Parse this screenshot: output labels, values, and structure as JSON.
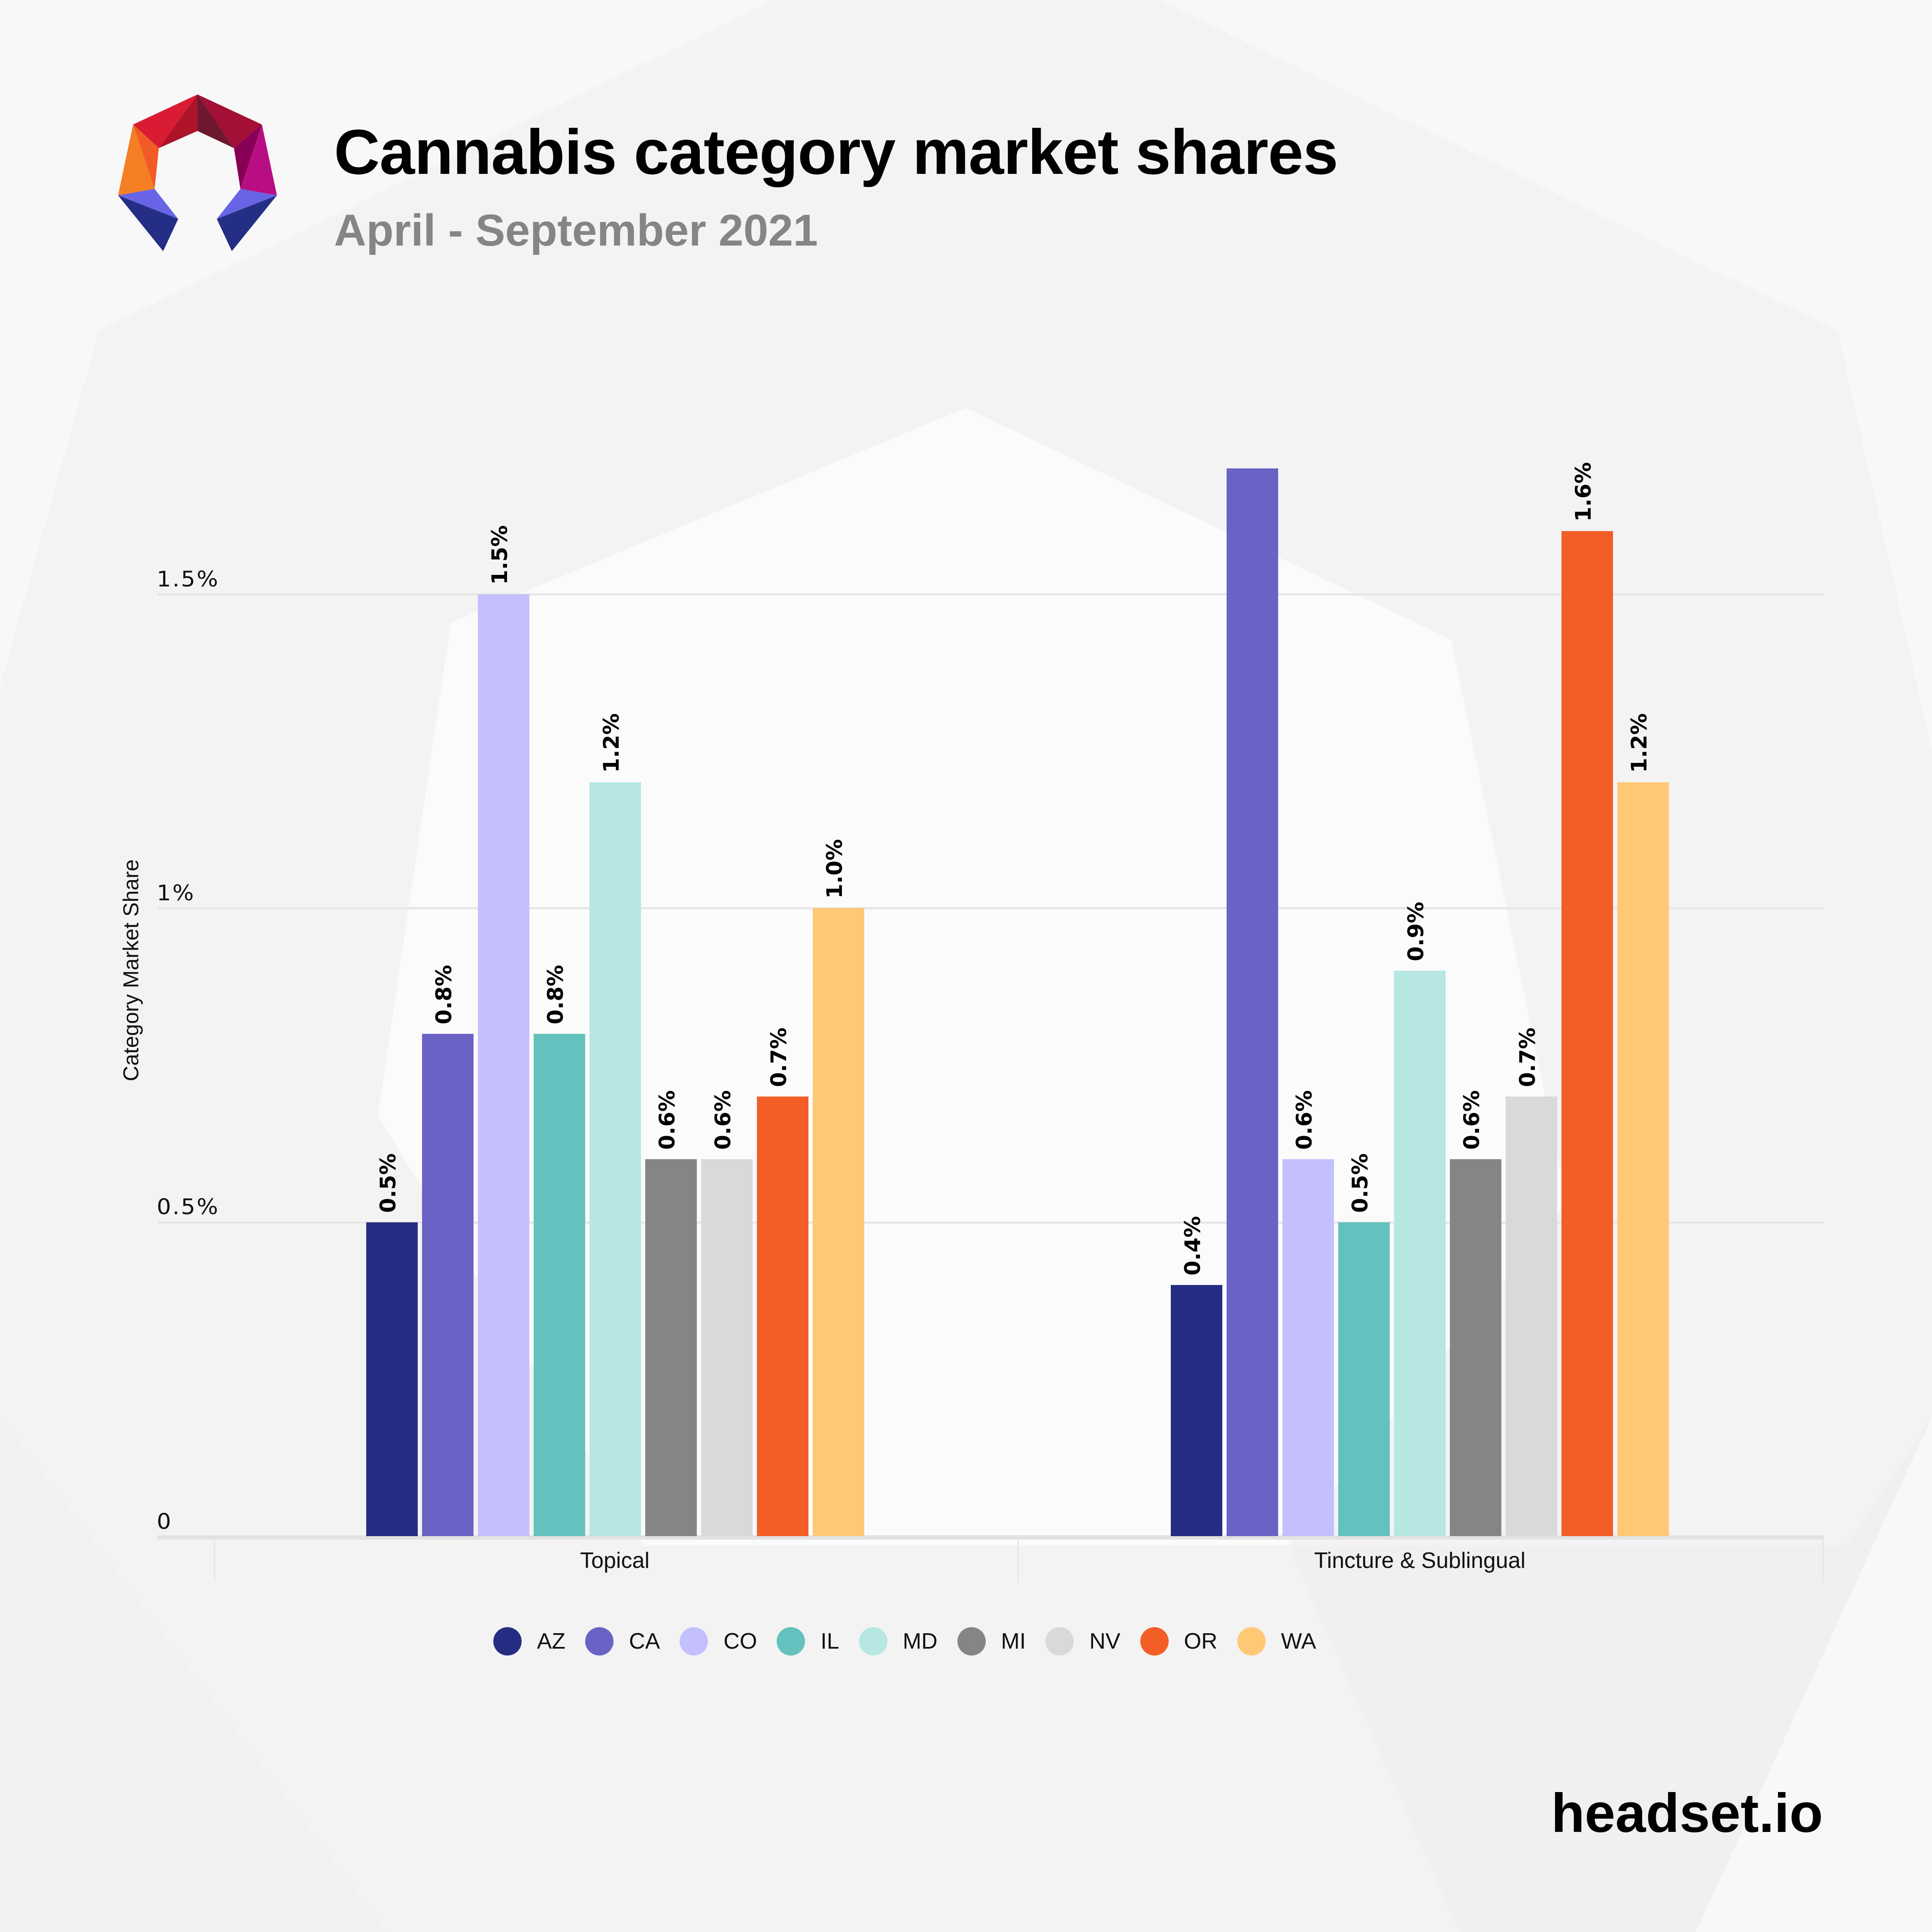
{
  "header": {
    "title": "Cannabis category market shares",
    "subtitle": "April - September 2021",
    "logo_icon": "headset-polygon-logo-icon"
  },
  "footer": {
    "brand": "headset.io"
  },
  "colors": {
    "AZ": "#252d82",
    "CA": "#6b62c6",
    "CO": "#c4c0fd",
    "IL": "#63c2bd",
    "MD": "#b6e7e3",
    "MI": "#858585",
    "NV": "#d9d9d9",
    "OR": "#f25e25",
    "WA": "#ffc875"
  },
  "chart_data": {
    "type": "bar",
    "title": "Cannabis category market shares",
    "subtitle": "April - September 2021",
    "xlabel": "",
    "ylabel": "Category Market Share",
    "ylim": [
      0,
      1.75
    ],
    "yticks": [
      "0",
      "0.5%",
      "1%",
      "1.5%"
    ],
    "ytick_values": [
      0,
      0.5,
      1.0,
      1.5
    ],
    "grid": true,
    "legend_position": "bottom",
    "categories": [
      "Topical",
      "Tincture & Sublingual"
    ],
    "series": [
      {
        "name": "AZ",
        "values": [
          0.5,
          0.4
        ],
        "labels": [
          "0.5%",
          "0.4%"
        ]
      },
      {
        "name": "CA",
        "values": [
          0.8,
          1.7
        ],
        "labels": [
          "0.8%",
          ""
        ]
      },
      {
        "name": "CO",
        "values": [
          1.5,
          0.6
        ],
        "labels": [
          "1.5%",
          "0.6%"
        ]
      },
      {
        "name": "IL",
        "values": [
          0.8,
          0.5
        ],
        "labels": [
          "0.8%",
          "0.5%"
        ]
      },
      {
        "name": "MD",
        "values": [
          1.2,
          0.9
        ],
        "labels": [
          "1.2%",
          "0.9%"
        ]
      },
      {
        "name": "MI",
        "values": [
          0.6,
          0.6
        ],
        "labels": [
          "0.6%",
          "0.6%"
        ]
      },
      {
        "name": "NV",
        "values": [
          0.6,
          0.7
        ],
        "labels": [
          "0.6%",
          "0.7%"
        ]
      },
      {
        "name": "OR",
        "values": [
          0.7,
          1.6
        ],
        "labels": [
          "0.7%",
          "1.6%"
        ]
      },
      {
        "name": "WA",
        "values": [
          1.0,
          1.2
        ],
        "labels": [
          "1.0%",
          "1.2%"
        ]
      }
    ]
  }
}
